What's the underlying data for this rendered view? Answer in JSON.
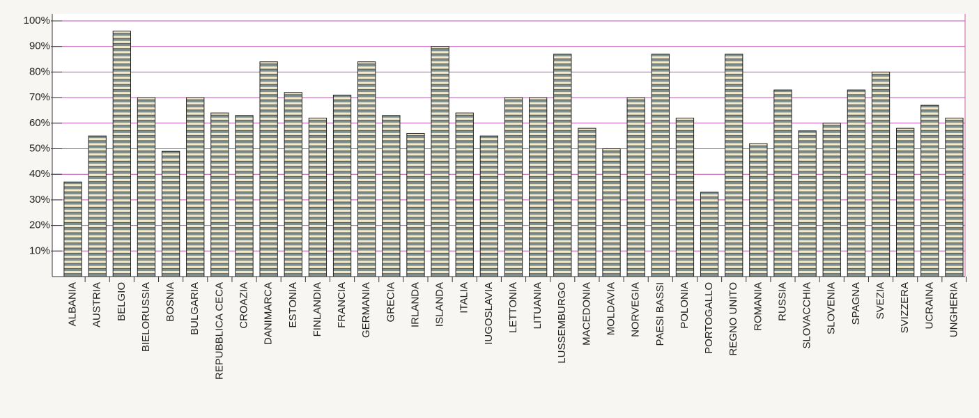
{
  "chart_data": {
    "type": "bar",
    "categories": [
      "ALBANIA",
      "AUSTRIA",
      "BELGIO",
      "BIELORUSSIA",
      "BOSNIA",
      "BULGARIA",
      "REPUBBLICA CECA",
      "CROAZIA",
      "DANIMARCA",
      "ESTONIA",
      "FINLANDIA",
      "FRANCIA",
      "GERMANIA",
      "GRECIA",
      "IRLANDA",
      "ISLANDA",
      "ITALIA",
      "IUGOSLAVIA",
      "LETTONIA",
      "LITUANIA",
      "LUSSEMBURGO",
      "MACEDONIA",
      "MOLDAVIA",
      "NORVEGIA",
      "PAESI BASSI",
      "POLONIA",
      "PORTOGALLO",
      "REGNO UNITO",
      "ROMANIA",
      "RUSSIA",
      "SLOVACCHIA",
      "SLOVENIA",
      "SPAGNA",
      "SVEZIA",
      "SVIZZERA",
      "UCRAINA",
      "UNGHERIA"
    ],
    "values": [
      37,
      55,
      96,
      70,
      49,
      70,
      64,
      63,
      84,
      72,
      62,
      71,
      84,
      63,
      56,
      90,
      64,
      55,
      70,
      70,
      87,
      58,
      50,
      70,
      87,
      62,
      33,
      87,
      52,
      73,
      57,
      60,
      73,
      80,
      58,
      67,
      62
    ],
    "color": "#7d8f8f",
    "ylim": [
      0,
      100
    ],
    "yticks": [
      {
        "value": 10,
        "label": "10%"
      },
      {
        "value": 20,
        "label": "20%"
      },
      {
        "value": 30,
        "label": "30%"
      },
      {
        "value": 40,
        "label": "40%"
      },
      {
        "value": 50,
        "label": "50%"
      },
      {
        "value": 60,
        "label": "60%"
      },
      {
        "value": 70,
        "label": "70%"
      },
      {
        "value": 80,
        "label": "80%"
      },
      {
        "value": 90,
        "label": "90%"
      },
      {
        "value": 100,
        "label": "100%"
      }
    ],
    "grid": true
  }
}
